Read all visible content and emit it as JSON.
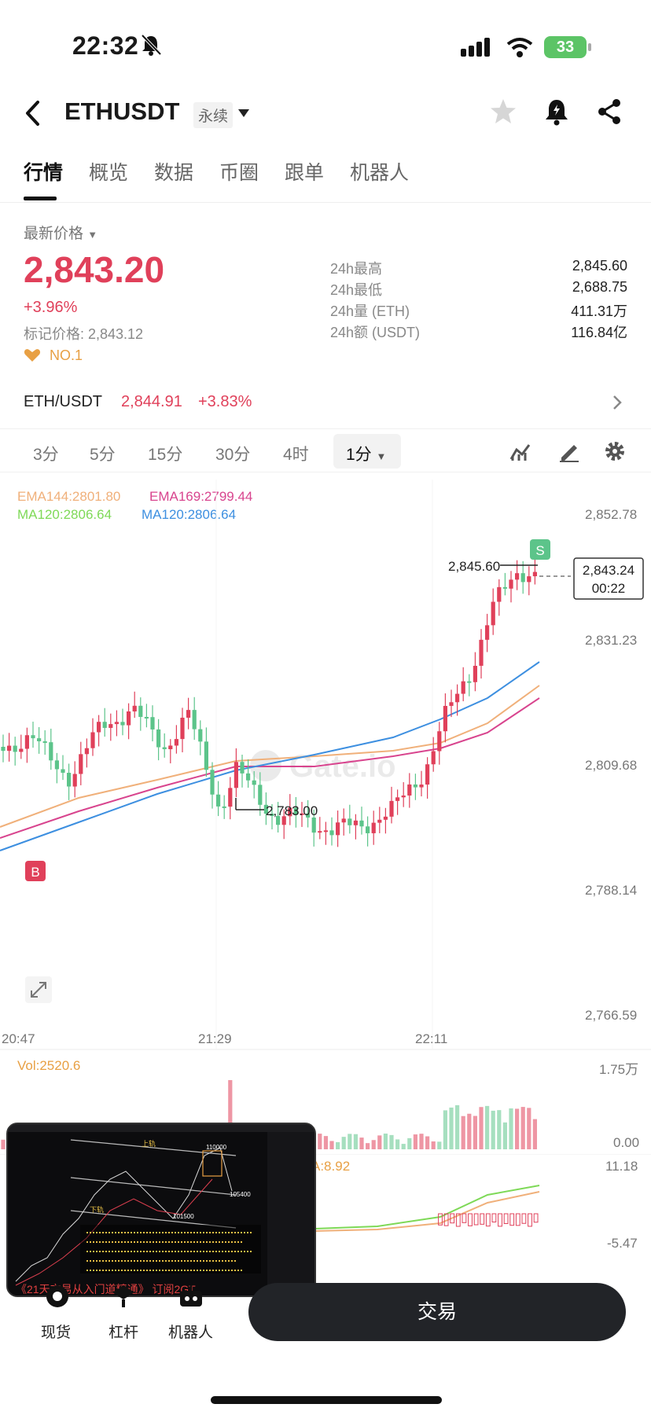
{
  "status_bar": {
    "time": "22:32",
    "battery": "33"
  },
  "header": {
    "symbol": "ETHUSDT",
    "contract_type": "永续"
  },
  "tabs": [
    "行情",
    "概览",
    "数据",
    "币圈",
    "跟单",
    "机器人"
  ],
  "price": {
    "latest_label": "最新价格",
    "last": "2,843.20",
    "change_pct": "+3.96%",
    "mark_price": "标记价格: 2,843.12",
    "rank": "NO.1"
  },
  "stats": [
    {
      "k": "24h最高",
      "v": "2,845.60"
    },
    {
      "k": "24h最低",
      "v": "2,688.75"
    },
    {
      "k": "24h量 (ETH)",
      "v": "411.31万"
    },
    {
      "k": "24h额 (USDT)",
      "v": "116.84亿"
    }
  ],
  "spot_pair": {
    "name": "ETH/USDT",
    "price": "2,844.91",
    "change": "+3.83%"
  },
  "intervals": [
    "3分",
    "5分",
    "15分",
    "30分",
    "4时"
  ],
  "active_interval": "1分",
  "indicators": {
    "ema144": "EMA144:2801.80",
    "ema169": "EMA169:2799.44",
    "ma120a": "MA120:2806.64",
    "ma120b": "MA120:2806.64"
  },
  "chart": {
    "y_ticks": [
      "2,852.78",
      "2,831.23",
      "2,809.68",
      "2,788.14",
      "2,766.59"
    ],
    "x_ticks": [
      "20:47",
      "21:29",
      "22:11"
    ],
    "high_label": "2,845.60",
    "low_label": "2,783.00",
    "current_price": "2,843.24",
    "countdown": "00:22",
    "buy_marker": "B",
    "sell_marker": "S",
    "watermark": "Gate.io"
  },
  "volume": {
    "label": "Vol:2520.6",
    "max": "1.75万",
    "min": "0.00"
  },
  "macd": {
    "label": "A:8.92",
    "max": "11.18",
    "min": "-5.47"
  },
  "pip_overlay": {
    "caption": "《21天交易从入门道精通》 订阅2GT",
    "labels": [
      "上轨",
      "110000",
      "105400",
      "101500",
      "下轨"
    ]
  },
  "bottom_nav": {
    "spot": "现货",
    "leverage": "杠杆",
    "bots": "机器人",
    "trade": "交易"
  },
  "colors": {
    "up": "#e0405a",
    "down": "#5cc48a",
    "ema144": "#f0b07a",
    "ema169": "#d8448e",
    "ma120a": "#7ed957",
    "ma120b": "#3d8fe0"
  }
}
